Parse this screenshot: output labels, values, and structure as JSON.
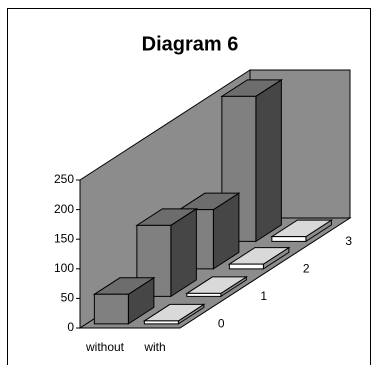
{
  "chart_data": {
    "type": "bar3d",
    "title": "Diagram 6",
    "categories": [
      "without",
      "with"
    ],
    "series": [
      {
        "name": "0",
        "values": [
          50,
          5
        ]
      },
      {
        "name": "1",
        "values": [
          120,
          5
        ]
      },
      {
        "name": "2",
        "values": [
          100,
          8
        ]
      },
      {
        "name": "3",
        "values": [
          245,
          8
        ]
      }
    ],
    "category_colors": [
      "#808080",
      "#ffffff"
    ],
    "ylim": [
      0,
      250
    ],
    "yticks": [
      0,
      50,
      100,
      150,
      200,
      250
    ]
  }
}
